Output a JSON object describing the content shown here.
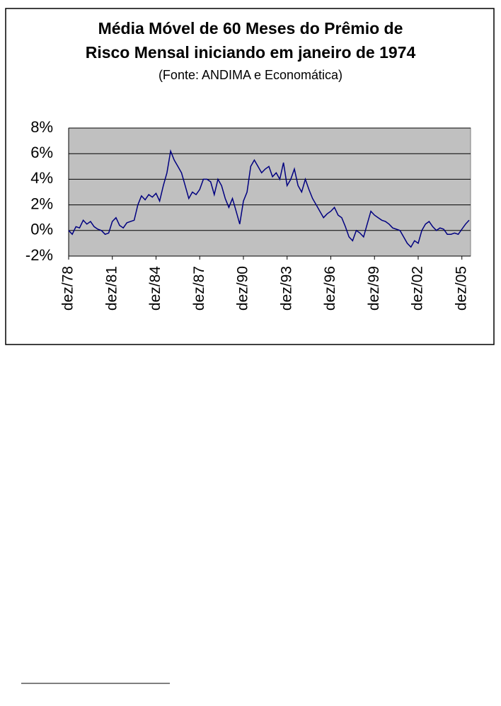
{
  "chart_data": {
    "type": "line",
    "title": [
      "Média Móvel de 60 Meses do Prêmio de",
      "Risco Mensal iniciando em janeiro de 1974"
    ],
    "subtitle": "(Fonte: ANDIMA e Economática)",
    "categories": [
      "dez/78",
      null,
      null,
      null,
      null,
      null,
      null,
      null,
      null,
      null,
      null,
      null,
      "dez/81",
      null,
      null,
      null,
      null,
      null,
      null,
      null,
      null,
      null,
      null,
      null,
      "dez/84",
      null,
      null,
      null,
      null,
      null,
      null,
      null,
      null,
      null,
      null,
      null,
      "dez/87",
      null,
      null,
      null,
      null,
      null,
      null,
      null,
      null,
      null,
      null,
      null,
      "dez/90",
      null,
      null,
      null,
      null,
      null,
      null,
      null,
      null,
      null,
      null,
      null,
      "dez/93",
      null,
      null,
      null,
      null,
      null,
      null,
      null,
      null,
      null,
      null,
      null,
      "dez/96",
      null,
      null,
      null,
      null,
      null,
      null,
      null,
      null,
      null,
      null,
      null,
      "dez/99",
      null,
      null,
      null,
      null,
      null,
      null,
      null,
      null,
      null,
      null,
      null,
      "dez/02",
      null,
      null,
      null,
      null,
      null,
      null,
      null,
      null,
      null,
      null,
      null,
      "dez/05",
      null,
      null
    ],
    "values": [
      0,
      -0.3,
      0.3,
      0.2,
      0.8,
      0.5,
      0.7,
      0.3,
      0.1,
      0,
      -0.3,
      -0.2,
      0.7,
      1.0,
      0.4,
      0.2,
      0.6,
      0.7,
      0.8,
      2.0,
      2.7,
      2.4,
      2.8,
      2.6,
      2.9,
      2.3,
      3.5,
      4.5,
      6.2,
      5.5,
      5.0,
      4.5,
      3.5,
      2.5,
      3.0,
      2.8,
      3.2,
      4.0,
      4.0,
      3.8,
      2.8,
      4.0,
      3.5,
      2.5,
      1.8,
      2.5,
      1.5,
      0.5,
      2.3,
      3.0,
      5.0,
      5.5,
      5.0,
      4.5,
      4.8,
      5.0,
      4.2,
      4.5,
      4.0,
      5.3,
      3.5,
      4.0,
      4.8,
      3.5,
      3.0,
      4.0,
      3.2,
      2.5,
      2.0,
      1.5,
      1.0,
      1.3,
      1.5,
      1.8,
      1.2,
      1.0,
      0.3,
      -0.5,
      -0.8,
      0.0,
      -0.2,
      -0.5,
      0.5,
      1.5,
      1.2,
      1.0,
      0.8,
      0.7,
      0.5,
      0.2,
      0.1,
      0.0,
      -0.5,
      -1.0,
      -1.3,
      -0.8,
      -1.0,
      0.0,
      0.5,
      0.7,
      0.3,
      0.0,
      0.2,
      0.1,
      -0.3,
      -0.3,
      -0.2,
      -0.3,
      0.1,
      0.5,
      0.8
    ],
    "color": "#000080",
    "ylim": [
      -2,
      8
    ],
    "yticks": [
      {
        "value": -2,
        "label": "-2%"
      },
      {
        "value": 0,
        "label": "0%"
      },
      {
        "value": 2,
        "label": "2%"
      },
      {
        "value": 4,
        "label": "4%"
      },
      {
        "value": 6,
        "label": "6%"
      },
      {
        "value": 8,
        "label": "8%"
      }
    ],
    "grid": true
  }
}
